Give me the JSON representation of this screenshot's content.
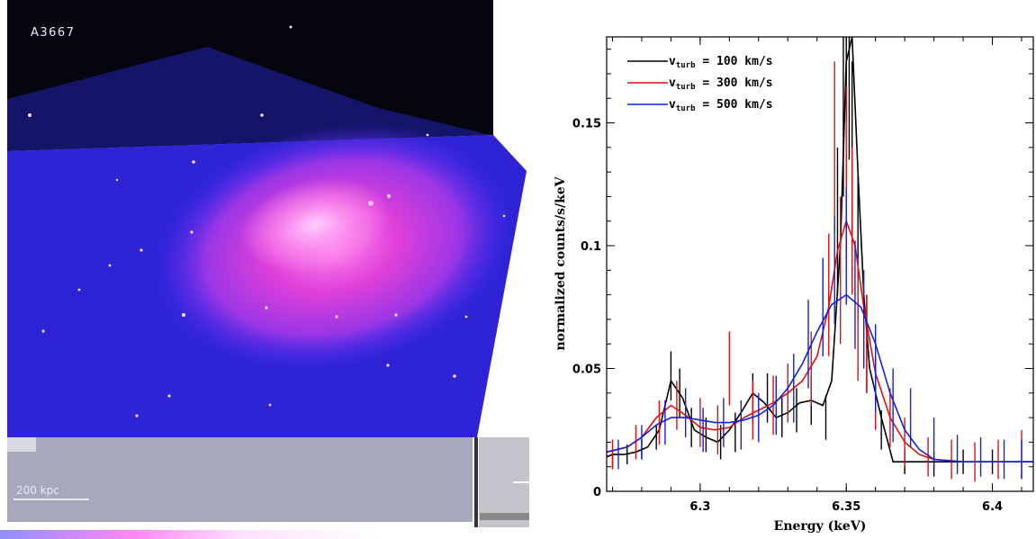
{
  "image_panel": {
    "cluster_name": "A3667",
    "scale_bar_label": "200 kpc"
  },
  "chart_data": {
    "type": "line",
    "xlabel": "Energy (keV)",
    "ylabel": "normalized counts/s/keV",
    "xlim": [
      6.268,
      6.414
    ],
    "ylim": [
      0,
      0.185
    ],
    "x_ticks": [
      6.3,
      6.35,
      6.4
    ],
    "x_tick_labels": [
      "6.3",
      "6.35",
      "6.4"
    ],
    "y_ticks": [
      0,
      0.05,
      0.1,
      0.15
    ],
    "y_tick_labels": [
      "0",
      "0.05",
      "0.1",
      "0.15"
    ],
    "legend_position": "top-left",
    "series": [
      {
        "legend_v": "v",
        "legend_sub": "turb",
        "legend_rest": " = 100 km/s",
        "color": "#000000",
        "model_x": [
          6.268,
          6.27,
          6.274,
          6.278,
          6.282,
          6.286,
          6.29,
          6.294,
          6.298,
          6.302,
          6.306,
          6.31,
          6.314,
          6.318,
          6.322,
          6.326,
          6.33,
          6.334,
          6.338,
          6.342,
          6.345,
          6.348,
          6.35,
          6.352,
          6.354,
          6.356,
          6.358,
          6.362,
          6.366,
          6.37,
          6.38,
          6.39,
          6.4,
          6.414
        ],
        "model_y": [
          0.014,
          0.015,
          0.015,
          0.016,
          0.018,
          0.025,
          0.045,
          0.038,
          0.025,
          0.022,
          0.02,
          0.025,
          0.032,
          0.04,
          0.036,
          0.03,
          0.032,
          0.036,
          0.037,
          0.035,
          0.045,
          0.1,
          0.175,
          0.185,
          0.13,
          0.08,
          0.05,
          0.03,
          0.012,
          0.012,
          0.012,
          0.012,
          0.012,
          0.012
        ],
        "data_x": [
          6.27,
          6.275,
          6.28,
          6.285,
          6.29,
          6.293,
          6.297,
          6.302,
          6.307,
          6.312,
          6.318,
          6.323,
          6.328,
          6.333,
          6.338,
          6.343,
          6.347,
          6.349,
          6.35,
          6.351,
          6.352,
          6.354,
          6.357,
          6.362,
          6.37,
          6.38,
          6.39,
          6.4
        ],
        "data_y": [
          0.013,
          0.015,
          0.017,
          0.022,
          0.047,
          0.04,
          0.026,
          0.023,
          0.02,
          0.024,
          0.038,
          0.038,
          0.03,
          0.033,
          0.037,
          0.03,
          0.11,
          0.16,
          0.19,
          0.175,
          0.14,
          0.1,
          0.06,
          0.025,
          0.012,
          0.011,
          0.012,
          0.012
        ],
        "data_err": [
          0.004,
          0.004,
          0.004,
          0.005,
          0.01,
          0.01,
          0.008,
          0.007,
          0.007,
          0.008,
          0.01,
          0.01,
          0.008,
          0.009,
          0.01,
          0.009,
          0.03,
          0.04,
          0.04,
          0.04,
          0.035,
          0.03,
          0.02,
          0.008,
          0.005,
          0.005,
          0.005,
          0.005
        ]
      },
      {
        "legend_v": "v",
        "legend_sub": "turb",
        "legend_rest": " = 300 km/s",
        "color": "#dd1111",
        "model_x": [
          6.268,
          6.275,
          6.28,
          6.285,
          6.29,
          6.295,
          6.3,
          6.305,
          6.31,
          6.315,
          6.32,
          6.325,
          6.33,
          6.335,
          6.34,
          6.344,
          6.347,
          6.35,
          6.353,
          6.356,
          6.36,
          6.365,
          6.37,
          6.375,
          6.38,
          6.39,
          6.4,
          6.414
        ],
        "model_y": [
          0.016,
          0.018,
          0.022,
          0.03,
          0.035,
          0.031,
          0.026,
          0.025,
          0.026,
          0.03,
          0.033,
          0.036,
          0.04,
          0.045,
          0.055,
          0.075,
          0.098,
          0.11,
          0.1,
          0.075,
          0.048,
          0.03,
          0.02,
          0.015,
          0.013,
          0.012,
          0.012,
          0.012
        ],
        "data_x": [
          6.27,
          6.278,
          6.286,
          6.292,
          6.3,
          6.306,
          6.31,
          6.318,
          6.325,
          6.33,
          6.338,
          6.344,
          6.346,
          6.348,
          6.35,
          6.352,
          6.354,
          6.357,
          6.36,
          6.365,
          6.37,
          6.378,
          6.386,
          6.394,
          6.402,
          6.41
        ],
        "data_y": [
          0.015,
          0.02,
          0.028,
          0.035,
          0.028,
          0.025,
          0.05,
          0.033,
          0.035,
          0.04,
          0.05,
          0.08,
          0.14,
          0.09,
          0.13,
          0.11,
          0.07,
          0.06,
          0.04,
          0.03,
          0.02,
          0.014,
          0.013,
          0.012,
          0.013,
          0.015
        ],
        "data_err": [
          0.006,
          0.007,
          0.009,
          0.01,
          0.01,
          0.01,
          0.015,
          0.012,
          0.012,
          0.012,
          0.015,
          0.025,
          0.035,
          0.03,
          0.035,
          0.03,
          0.025,
          0.02,
          0.015,
          0.012,
          0.01,
          0.008,
          0.008,
          0.008,
          0.008,
          0.01
        ]
      },
      {
        "legend_v": "v",
        "legend_sub": "turb",
        "legend_rest": " = 500 km/s",
        "color": "#1122dd",
        "model_x": [
          6.268,
          6.275,
          6.28,
          6.285,
          6.29,
          6.295,
          6.3,
          6.305,
          6.31,
          6.315,
          6.32,
          6.325,
          6.33,
          6.335,
          6.34,
          6.345,
          6.35,
          6.355,
          6.36,
          6.365,
          6.37,
          6.375,
          6.38,
          6.39,
          6.4,
          6.414
        ],
        "model_y": [
          0.016,
          0.018,
          0.022,
          0.027,
          0.03,
          0.03,
          0.029,
          0.028,
          0.028,
          0.029,
          0.031,
          0.035,
          0.042,
          0.052,
          0.065,
          0.076,
          0.08,
          0.075,
          0.06,
          0.04,
          0.025,
          0.017,
          0.013,
          0.012,
          0.012,
          0.012
        ],
        "data_x": [
          6.272,
          6.28,
          6.288,
          6.295,
          6.301,
          6.308,
          6.314,
          6.32,
          6.326,
          6.332,
          6.337,
          6.342,
          6.346,
          6.35,
          6.353,
          6.356,
          6.36,
          6.366,
          6.372,
          6.38,
          6.388,
          6.396,
          6.404,
          6.41
        ],
        "data_y": [
          0.015,
          0.02,
          0.028,
          0.032,
          0.025,
          0.028,
          0.027,
          0.03,
          0.035,
          0.042,
          0.06,
          0.075,
          0.09,
          0.1,
          0.08,
          0.07,
          0.05,
          0.035,
          0.03,
          0.02,
          0.015,
          0.014,
          0.013,
          0.013
        ],
        "data_err": [
          0.006,
          0.007,
          0.009,
          0.01,
          0.009,
          0.01,
          0.01,
          0.01,
          0.012,
          0.014,
          0.018,
          0.02,
          0.022,
          0.024,
          0.022,
          0.02,
          0.018,
          0.015,
          0.012,
          0.01,
          0.008,
          0.008,
          0.008,
          0.008
        ]
      }
    ]
  }
}
